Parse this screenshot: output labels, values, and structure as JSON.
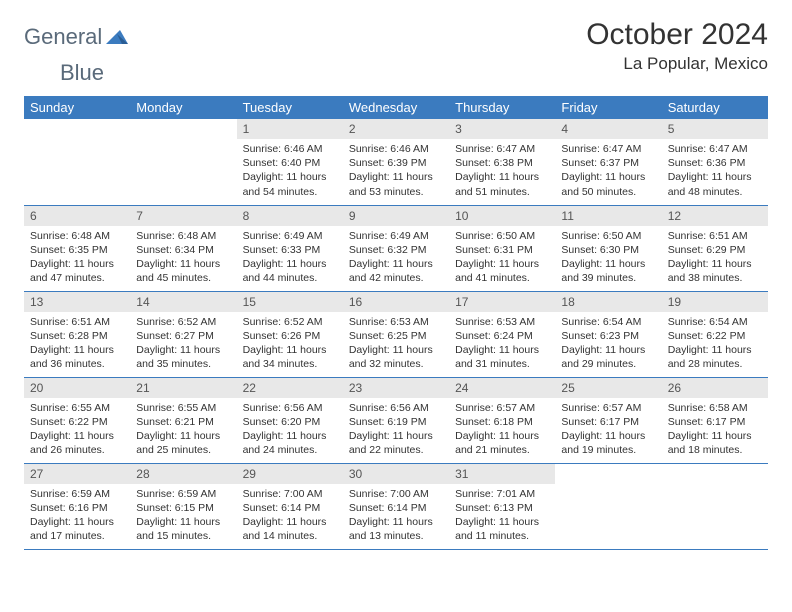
{
  "logo": {
    "word1": "General",
    "word2": "Blue"
  },
  "title": "October 2024",
  "location": "La Popular, Mexico",
  "dayHeaders": [
    "Sunday",
    "Monday",
    "Tuesday",
    "Wednesday",
    "Thursday",
    "Friday",
    "Saturday"
  ],
  "colors": {
    "headerBg": "#3b7bbf",
    "headerText": "#ffffff",
    "dayNumBg": "#e8e8e8",
    "border": "#3b7bbf",
    "text": "#333333"
  },
  "weeks": [
    [
      null,
      null,
      {
        "n": "1",
        "sr": "6:46 AM",
        "ss": "6:40 PM",
        "d1": "Daylight: 11 hours",
        "d2": "and 54 minutes."
      },
      {
        "n": "2",
        "sr": "6:46 AM",
        "ss": "6:39 PM",
        "d1": "Daylight: 11 hours",
        "d2": "and 53 minutes."
      },
      {
        "n": "3",
        "sr": "6:47 AM",
        "ss": "6:38 PM",
        "d1": "Daylight: 11 hours",
        "d2": "and 51 minutes."
      },
      {
        "n": "4",
        "sr": "6:47 AM",
        "ss": "6:37 PM",
        "d1": "Daylight: 11 hours",
        "d2": "and 50 minutes."
      },
      {
        "n": "5",
        "sr": "6:47 AM",
        "ss": "6:36 PM",
        "d1": "Daylight: 11 hours",
        "d2": "and 48 minutes."
      }
    ],
    [
      {
        "n": "6",
        "sr": "6:48 AM",
        "ss": "6:35 PM",
        "d1": "Daylight: 11 hours",
        "d2": "and 47 minutes."
      },
      {
        "n": "7",
        "sr": "6:48 AM",
        "ss": "6:34 PM",
        "d1": "Daylight: 11 hours",
        "d2": "and 45 minutes."
      },
      {
        "n": "8",
        "sr": "6:49 AM",
        "ss": "6:33 PM",
        "d1": "Daylight: 11 hours",
        "d2": "and 44 minutes."
      },
      {
        "n": "9",
        "sr": "6:49 AM",
        "ss": "6:32 PM",
        "d1": "Daylight: 11 hours",
        "d2": "and 42 minutes."
      },
      {
        "n": "10",
        "sr": "6:50 AM",
        "ss": "6:31 PM",
        "d1": "Daylight: 11 hours",
        "d2": "and 41 minutes."
      },
      {
        "n": "11",
        "sr": "6:50 AM",
        "ss": "6:30 PM",
        "d1": "Daylight: 11 hours",
        "d2": "and 39 minutes."
      },
      {
        "n": "12",
        "sr": "6:51 AM",
        "ss": "6:29 PM",
        "d1": "Daylight: 11 hours",
        "d2": "and 38 minutes."
      }
    ],
    [
      {
        "n": "13",
        "sr": "6:51 AM",
        "ss": "6:28 PM",
        "d1": "Daylight: 11 hours",
        "d2": "and 36 minutes."
      },
      {
        "n": "14",
        "sr": "6:52 AM",
        "ss": "6:27 PM",
        "d1": "Daylight: 11 hours",
        "d2": "and 35 minutes."
      },
      {
        "n": "15",
        "sr": "6:52 AM",
        "ss": "6:26 PM",
        "d1": "Daylight: 11 hours",
        "d2": "and 34 minutes."
      },
      {
        "n": "16",
        "sr": "6:53 AM",
        "ss": "6:25 PM",
        "d1": "Daylight: 11 hours",
        "d2": "and 32 minutes."
      },
      {
        "n": "17",
        "sr": "6:53 AM",
        "ss": "6:24 PM",
        "d1": "Daylight: 11 hours",
        "d2": "and 31 minutes."
      },
      {
        "n": "18",
        "sr": "6:54 AM",
        "ss": "6:23 PM",
        "d1": "Daylight: 11 hours",
        "d2": "and 29 minutes."
      },
      {
        "n": "19",
        "sr": "6:54 AM",
        "ss": "6:22 PM",
        "d1": "Daylight: 11 hours",
        "d2": "and 28 minutes."
      }
    ],
    [
      {
        "n": "20",
        "sr": "6:55 AM",
        "ss": "6:22 PM",
        "d1": "Daylight: 11 hours",
        "d2": "and 26 minutes."
      },
      {
        "n": "21",
        "sr": "6:55 AM",
        "ss": "6:21 PM",
        "d1": "Daylight: 11 hours",
        "d2": "and 25 minutes."
      },
      {
        "n": "22",
        "sr": "6:56 AM",
        "ss": "6:20 PM",
        "d1": "Daylight: 11 hours",
        "d2": "and 24 minutes."
      },
      {
        "n": "23",
        "sr": "6:56 AM",
        "ss": "6:19 PM",
        "d1": "Daylight: 11 hours",
        "d2": "and 22 minutes."
      },
      {
        "n": "24",
        "sr": "6:57 AM",
        "ss": "6:18 PM",
        "d1": "Daylight: 11 hours",
        "d2": "and 21 minutes."
      },
      {
        "n": "25",
        "sr": "6:57 AM",
        "ss": "6:17 PM",
        "d1": "Daylight: 11 hours",
        "d2": "and 19 minutes."
      },
      {
        "n": "26",
        "sr": "6:58 AM",
        "ss": "6:17 PM",
        "d1": "Daylight: 11 hours",
        "d2": "and 18 minutes."
      }
    ],
    [
      {
        "n": "27",
        "sr": "6:59 AM",
        "ss": "6:16 PM",
        "d1": "Daylight: 11 hours",
        "d2": "and 17 minutes."
      },
      {
        "n": "28",
        "sr": "6:59 AM",
        "ss": "6:15 PM",
        "d1": "Daylight: 11 hours",
        "d2": "and 15 minutes."
      },
      {
        "n": "29",
        "sr": "7:00 AM",
        "ss": "6:14 PM",
        "d1": "Daylight: 11 hours",
        "d2": "and 14 minutes."
      },
      {
        "n": "30",
        "sr": "7:00 AM",
        "ss": "6:14 PM",
        "d1": "Daylight: 11 hours",
        "d2": "and 13 minutes."
      },
      {
        "n": "31",
        "sr": "7:01 AM",
        "ss": "6:13 PM",
        "d1": "Daylight: 11 hours",
        "d2": "and 11 minutes."
      },
      null,
      null
    ]
  ],
  "labels": {
    "sunrise": "Sunrise: ",
    "sunset": "Sunset: "
  }
}
